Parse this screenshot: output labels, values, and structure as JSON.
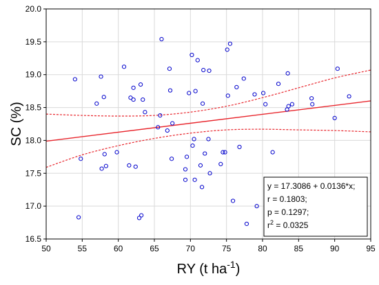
{
  "chart_data": {
    "type": "scatter",
    "xlabel": {
      "base": "RY (t ha",
      "sup": "-1",
      "tail": ")"
    },
    "ylabel": "SC (%)",
    "xlim": [
      50,
      95
    ],
    "ylim": [
      16.5,
      20.0
    ],
    "xticks": [
      "50",
      "55",
      "60",
      "65",
      "70",
      "75",
      "80",
      "85",
      "90",
      "95"
    ],
    "yticks": [
      "16.5",
      "17.0",
      "17.5",
      "18.0",
      "18.5",
      "19.0",
      "19.5",
      "20.0"
    ],
    "grid": true,
    "points": [
      [
        54.0,
        18.93
      ],
      [
        54.5,
        16.83
      ],
      [
        54.8,
        17.72
      ],
      [
        57.0,
        18.56
      ],
      [
        57.6,
        18.97
      ],
      [
        57.7,
        17.57
      ],
      [
        58.0,
        18.66
      ],
      [
        58.1,
        17.79
      ],
      [
        58.3,
        17.61
      ],
      [
        59.8,
        17.82
      ],
      [
        60.8,
        19.12
      ],
      [
        61.5,
        17.62
      ],
      [
        61.7,
        18.65
      ],
      [
        62.1,
        18.62
      ],
      [
        62.1,
        18.8
      ],
      [
        62.4,
        17.6
      ],
      [
        62.9,
        16.82
      ],
      [
        63.1,
        18.85
      ],
      [
        63.2,
        16.86
      ],
      [
        63.4,
        18.62
      ],
      [
        63.7,
        18.43
      ],
      [
        65.5,
        18.2
      ],
      [
        65.8,
        18.38
      ],
      [
        66.0,
        19.54
      ],
      [
        66.8,
        18.15
      ],
      [
        67.1,
        19.09
      ],
      [
        67.2,
        18.76
      ],
      [
        67.4,
        17.72
      ],
      [
        67.5,
        18.26
      ],
      [
        69.3,
        17.4
      ],
      [
        69.3,
        17.56
      ],
      [
        69.5,
        17.75
      ],
      [
        69.8,
        18.72
      ],
      [
        70.2,
        19.3
      ],
      [
        70.3,
        17.92
      ],
      [
        70.5,
        18.02
      ],
      [
        70.6,
        17.4
      ],
      [
        70.7,
        18.75
      ],
      [
        71.0,
        19.22
      ],
      [
        71.4,
        17.62
      ],
      [
        71.6,
        17.29
      ],
      [
        71.7,
        18.56
      ],
      [
        71.8,
        19.07
      ],
      [
        72.0,
        17.8
      ],
      [
        72.5,
        18.02
      ],
      [
        72.6,
        19.06
      ],
      [
        72.7,
        17.5
      ],
      [
        74.2,
        17.64
      ],
      [
        74.5,
        17.82
      ],
      [
        74.8,
        17.82
      ],
      [
        75.1,
        19.38
      ],
      [
        75.2,
        18.68
      ],
      [
        75.5,
        19.47
      ],
      [
        75.9,
        17.08
      ],
      [
        76.4,
        18.81
      ],
      [
        76.8,
        17.9
      ],
      [
        77.4,
        18.94
      ],
      [
        77.8,
        16.73
      ],
      [
        78.9,
        18.7
      ],
      [
        79.2,
        17.0
      ],
      [
        80.1,
        18.72
      ],
      [
        80.4,
        18.55
      ],
      [
        81.4,
        17.82
      ],
      [
        82.2,
        18.86
      ],
      [
        83.4,
        18.47
      ],
      [
        83.5,
        19.02
      ],
      [
        83.6,
        18.52
      ],
      [
        84.1,
        18.55
      ],
      [
        86.8,
        18.64
      ],
      [
        86.9,
        18.55
      ],
      [
        90.0,
        18.34
      ],
      [
        90.4,
        19.09
      ],
      [
        92.0,
        18.67
      ]
    ],
    "fit": {
      "intercept": 17.3086,
      "slope": 0.0136,
      "x_range": [
        50,
        95
      ]
    },
    "confidence_band": {
      "x": [
        50,
        55,
        60,
        65,
        70,
        75,
        80,
        85,
        90,
        95
      ],
      "upper": [
        18.4,
        18.38,
        18.37,
        18.38,
        18.43,
        18.52,
        18.65,
        18.8,
        18.95,
        19.07
      ],
      "lower": [
        17.59,
        17.78,
        17.92,
        18.03,
        18.11,
        18.16,
        18.17,
        18.16,
        18.15,
        18.13
      ]
    },
    "annotation": {
      "line1": "y = 17.3086 + 0.0136*x;",
      "line2": "r = 0.1803;",
      "line3": "p = 0.1297;",
      "line4_base": "r",
      "line4_sup": "2",
      "line4_tail": " = 0.0325"
    },
    "colors": {
      "points": "#0000cc",
      "fit": "#e8232a",
      "grid": "#d9d9d9",
      "axis": "#000000"
    }
  }
}
